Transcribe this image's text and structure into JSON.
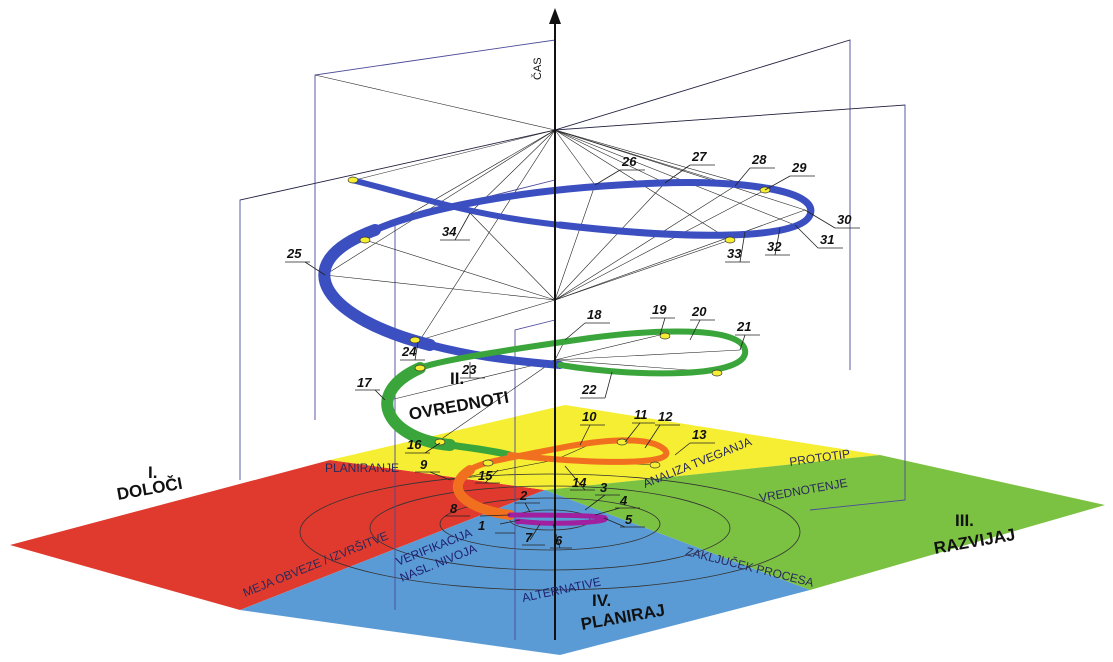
{
  "axis": {
    "label": "ČAS"
  },
  "quadrants": {
    "q1": {
      "line1": "I.",
      "line2": "DOLOČI",
      "color": "#e03a2e"
    },
    "q2": {
      "line1": "II.",
      "line2": "OVREDNOTI",
      "color": "#f5ee32"
    },
    "q3": {
      "line1": "III.",
      "line2": "RAZVIJAJ",
      "color": "#7cc242"
    },
    "q4": {
      "line1": "IV.",
      "line2": "PLANIRAJ",
      "color": "#5b9bd5"
    }
  },
  "plane_labels": {
    "planiranje": "PLANIRANJE",
    "prototip": "PROTOTIP",
    "analiza": "ANALIZA TVEGANJA",
    "vrednotenje": "VREDNOTENJE",
    "zakljucek": "ZAKLJUČEK PROCESA",
    "meja": "MEJA OBVEZE / IZVRŠITVE",
    "verifikacija1": "VERIFIKACIJA",
    "verifikacija2": "NASL. NIVOJA",
    "alternative": "ALTERNATIVE"
  },
  "spiral_colors": {
    "purple": "#a020a0",
    "orange": "#f07020",
    "green": "#3aa53a",
    "blue": "#3b4fc0"
  },
  "steps": [
    "1",
    "2",
    "3",
    "4",
    "5",
    "6",
    "7",
    "8",
    "9",
    "10",
    "11",
    "12",
    "13",
    "14",
    "15",
    "16",
    "17",
    "18",
    "19",
    "20",
    "21",
    "22",
    "23",
    "24",
    "25",
    "26",
    "27",
    "28",
    "29",
    "30",
    "31",
    "32",
    "33",
    "34"
  ]
}
